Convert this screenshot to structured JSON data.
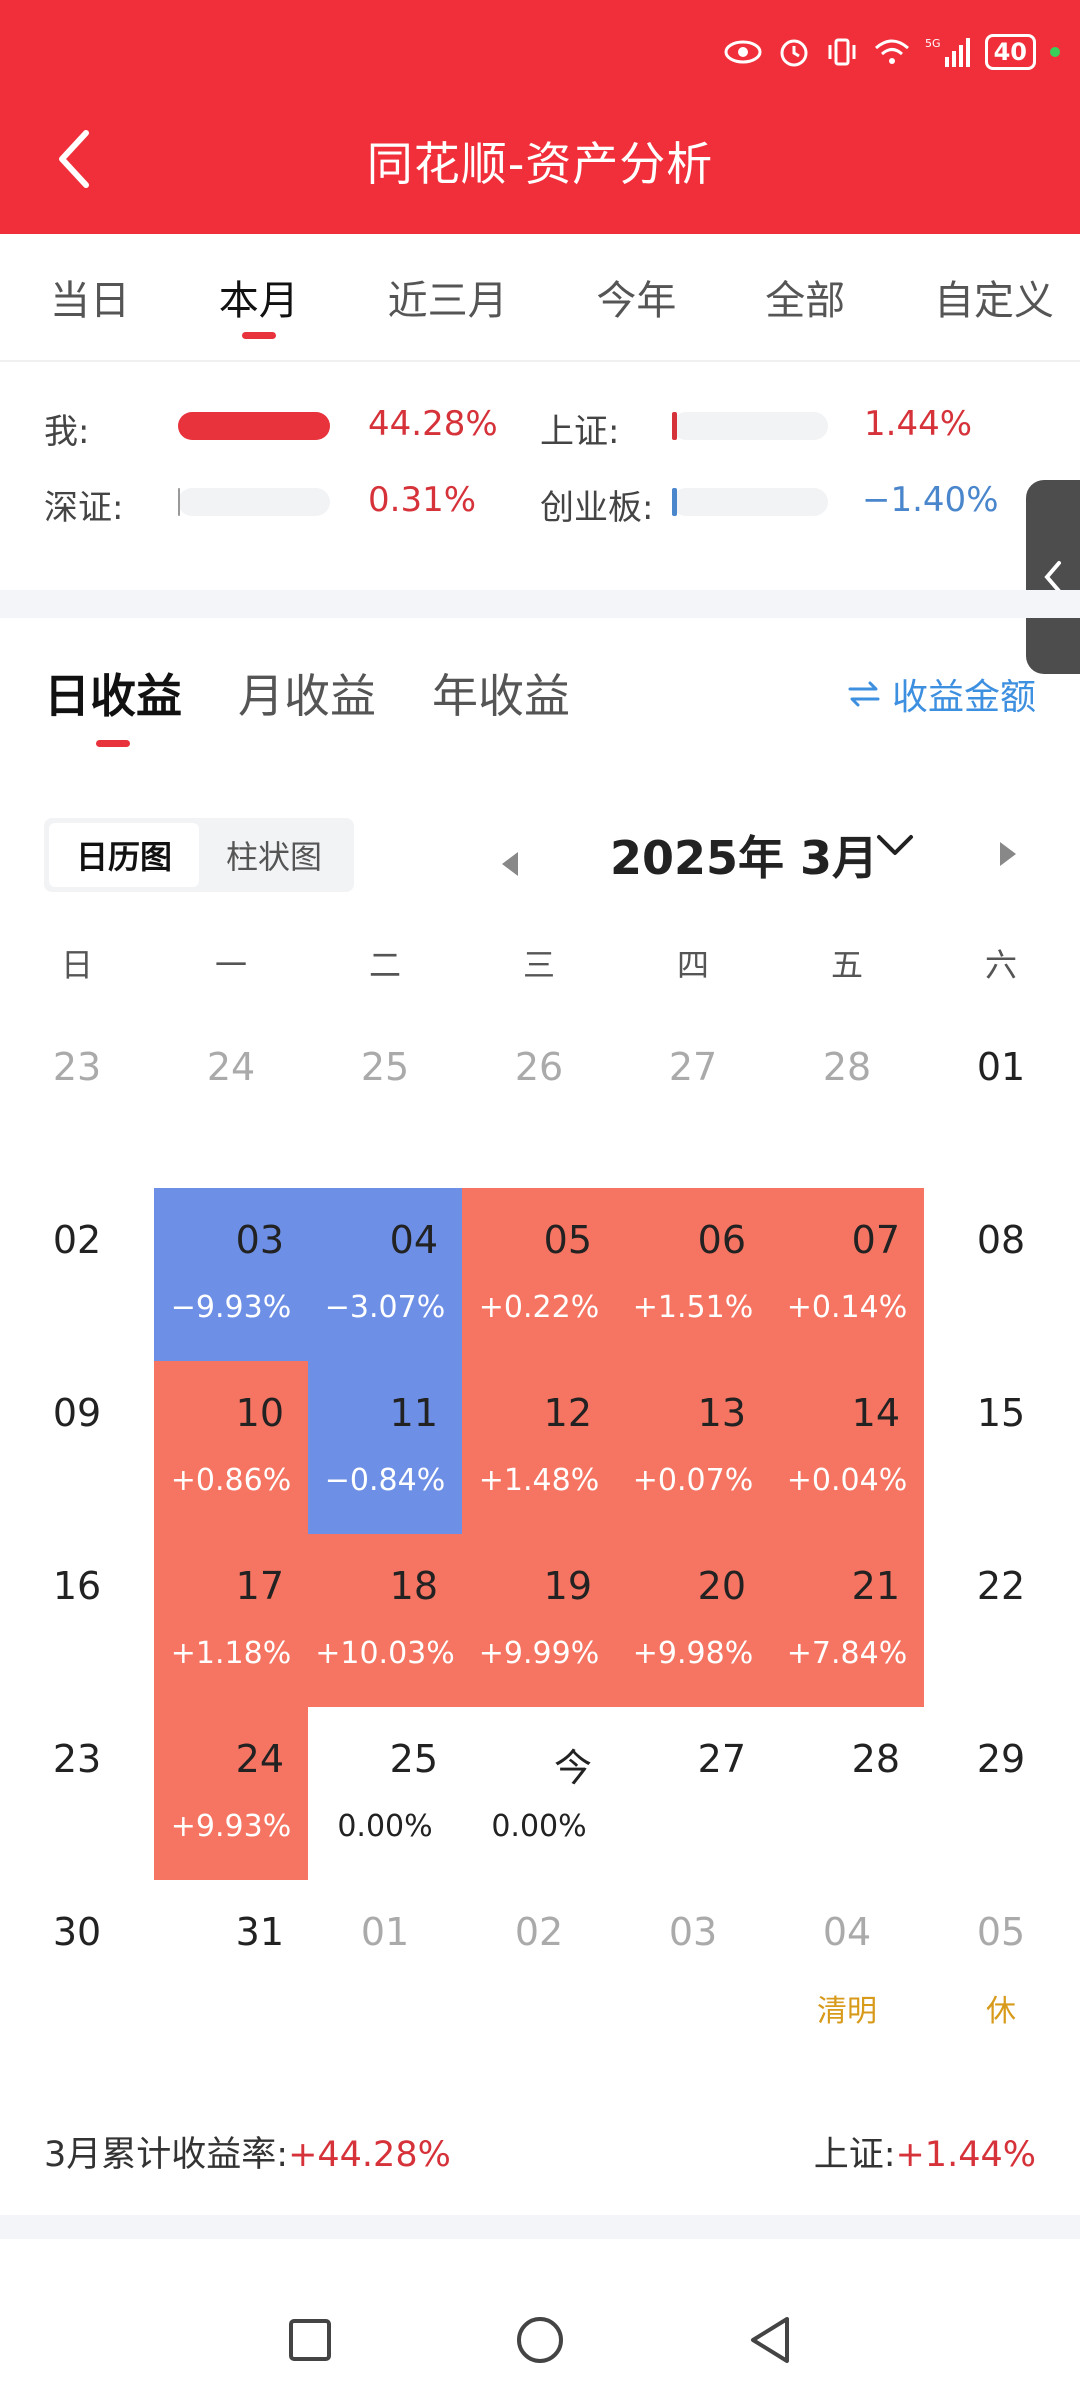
{
  "header": {
    "title": "同花顺-资产分析",
    "status": {
      "battery": "40",
      "signal_label": "5G"
    }
  },
  "range_tabs": [
    {
      "label": "当日",
      "active": false
    },
    {
      "label": "本月",
      "active": true
    },
    {
      "label": "近三月",
      "active": false
    },
    {
      "label": "今年",
      "active": false
    },
    {
      "label": "全部",
      "active": false
    },
    {
      "label": "自定义",
      "active": false
    }
  ],
  "compare": {
    "me": {
      "label": "我:",
      "value": "44.28%",
      "fill": 1.0
    },
    "sh": {
      "label": "上证:",
      "value": "1.44%",
      "fill": 0.03
    },
    "sz": {
      "label": "深证:",
      "value": "0.31%",
      "fill": 0.01
    },
    "cyb": {
      "label": "创业板:",
      "value": "−1.40%",
      "fill": 0.03
    }
  },
  "income_tabs": [
    {
      "label": "日收益",
      "active": true
    },
    {
      "label": "月收益",
      "active": false
    },
    {
      "label": "年收益",
      "active": false
    }
  ],
  "amount_toggle": {
    "label": "收益金额"
  },
  "chart_toggle": {
    "calendar": "日历图",
    "bar": "柱状图"
  },
  "month": {
    "label": "2025年 3月"
  },
  "weekdays": [
    "日",
    "一",
    "二",
    "三",
    "四",
    "五",
    "六"
  ],
  "calendar": [
    [
      {
        "day": "23",
        "dim": true
      },
      {
        "day": "24",
        "dim": true
      },
      {
        "day": "25",
        "dim": true
      },
      {
        "day": "26",
        "dim": true
      },
      {
        "day": "27",
        "dim": true
      },
      {
        "day": "28",
        "dim": true
      },
      {
        "day": "01",
        "edge": true
      }
    ],
    [
      {
        "day": "02",
        "edge": true
      },
      {
        "day": "03",
        "pct": "−9.93%",
        "tone": "down"
      },
      {
        "day": "04",
        "pct": "−3.07%",
        "tone": "down"
      },
      {
        "day": "05",
        "pct": "+0.22%",
        "tone": "up"
      },
      {
        "day": "06",
        "pct": "+1.51%",
        "tone": "up"
      },
      {
        "day": "07",
        "pct": "+0.14%",
        "tone": "up"
      },
      {
        "day": "08",
        "edge": true
      }
    ],
    [
      {
        "day": "09",
        "edge": true
      },
      {
        "day": "10",
        "pct": "+0.86%",
        "tone": "up"
      },
      {
        "day": "11",
        "pct": "−0.84%",
        "tone": "down"
      },
      {
        "day": "12",
        "pct": "+1.48%",
        "tone": "up"
      },
      {
        "day": "13",
        "pct": "+0.07%",
        "tone": "up"
      },
      {
        "day": "14",
        "pct": "+0.04%",
        "tone": "up"
      },
      {
        "day": "15",
        "edge": true
      }
    ],
    [
      {
        "day": "16",
        "edge": true
      },
      {
        "day": "17",
        "pct": "+1.18%",
        "tone": "up"
      },
      {
        "day": "18",
        "pct": "+10.03%",
        "tone": "up"
      },
      {
        "day": "19",
        "pct": "+9.99%",
        "tone": "up"
      },
      {
        "day": "20",
        "pct": "+9.98%",
        "tone": "up"
      },
      {
        "day": "21",
        "pct": "+7.84%",
        "tone": "up"
      },
      {
        "day": "22",
        "edge": true
      }
    ],
    [
      {
        "day": "23",
        "edge": true
      },
      {
        "day": "24",
        "pct": "+9.93%",
        "tone": "up"
      },
      {
        "day": "25",
        "pct": "0.00%",
        "tone": "flat"
      },
      {
        "day": "今",
        "pct": "0.00%",
        "tone": "flat"
      },
      {
        "day": "27",
        "tone": "plain"
      },
      {
        "day": "28",
        "tone": "plain"
      },
      {
        "day": "29",
        "edge": true
      }
    ],
    [
      {
        "day": "30",
        "edge": true
      },
      {
        "day": "31",
        "tone": "plain"
      },
      {
        "day": "01",
        "dim": true
      },
      {
        "day": "02",
        "dim": true
      },
      {
        "day": "03",
        "dim": true
      },
      {
        "day": "04",
        "dim": true,
        "note": "清明"
      },
      {
        "day": "05",
        "dim": true,
        "note": "休"
      }
    ]
  ],
  "summary": {
    "left_label": "3月累计收益率:",
    "left_value": "+44.28%",
    "right_label": "上证:",
    "right_value": "+1.44%"
  },
  "colors": {
    "header": "#f12f3a",
    "up": "#f57462",
    "down": "#6d8fe6",
    "red_text": "#d6323a",
    "blue_text": "#4a86cc",
    "accent_blue": "#3d8fe0"
  }
}
